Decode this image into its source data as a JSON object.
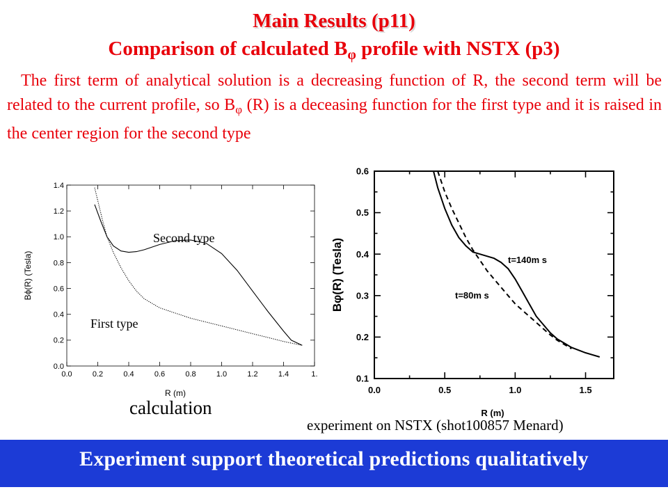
{
  "header": {
    "title": "Main Results (p11)",
    "subtitle_pre": "Comparison  of calculated B",
    "subtitle_sub": "φ",
    "subtitle_post": " profile with NSTX (p3)"
  },
  "paragraph": {
    "part1": "The first term of analytical solution is a decreasing function of R, the second term will be related to the current profile, so B",
    "sub": "φ",
    "part2": " (R) is a deceasing function for the first type and it is raised in the center region for the second type"
  },
  "captions": {
    "calculation": "calculation",
    "experiment": "experiment on NSTX (shot100857  Menard)"
  },
  "banner": {
    "text": "Experiment support theoretical predictions qualitatively",
    "color": "#1c3bd6"
  },
  "chart_data": [
    {
      "type": "line",
      "xlabel": "R (m)",
      "ylabel": "Bϕ(R) (Tesla)",
      "xlim": [
        0.0,
        1.6
      ],
      "ylim": [
        0.0,
        1.4
      ],
      "x_ticks": [
        "0.0",
        "0.2",
        "0.4",
        "0.6",
        "0.8",
        "1.0",
        "1.2",
        "1.4",
        "1."
      ],
      "y_ticks": [
        "0.0",
        "0.2",
        "0.4",
        "0.6",
        "0.8",
        "1.0",
        "1.2",
        "1.4"
      ],
      "annotations": [
        "Second type",
        "First type"
      ],
      "series": [
        {
          "name": "Second type",
          "style": "solid",
          "x": [
            0.18,
            0.22,
            0.26,
            0.3,
            0.35,
            0.4,
            0.45,
            0.5,
            0.55,
            0.6,
            0.7,
            0.8,
            0.9,
            1.0,
            1.1,
            1.2,
            1.3,
            1.4,
            1.45,
            1.52
          ],
          "y": [
            1.25,
            1.12,
            1.0,
            0.93,
            0.89,
            0.88,
            0.885,
            0.9,
            0.92,
            0.94,
            0.97,
            0.975,
            0.95,
            0.87,
            0.74,
            0.58,
            0.42,
            0.27,
            0.2,
            0.16
          ]
        },
        {
          "name": "First type",
          "style": "dotted",
          "x": [
            0.18,
            0.2,
            0.23,
            0.26,
            0.3,
            0.35,
            0.4,
            0.45,
            0.5,
            0.6,
            0.7,
            0.8,
            0.9,
            1.0,
            1.1,
            1.2,
            1.3,
            1.4,
            1.52
          ],
          "y": [
            1.38,
            1.28,
            1.13,
            1.0,
            0.88,
            0.76,
            0.66,
            0.58,
            0.52,
            0.45,
            0.41,
            0.37,
            0.34,
            0.31,
            0.28,
            0.25,
            0.22,
            0.19,
            0.16
          ]
        }
      ]
    },
    {
      "type": "line",
      "xlabel": "R (m)",
      "ylabel": "Bφ(R) (Tesla)",
      "xlim": [
        0.0,
        1.7
      ],
      "ylim": [
        0.1,
        0.6
      ],
      "x_ticks": [
        "0.0",
        "0.5",
        "1.0",
        "1.5"
      ],
      "y_ticks": [
        "0.1",
        "0.2",
        "0.3",
        "0.4",
        "0.5",
        "0.6"
      ],
      "annotations": [
        "t=140m s",
        "t=80m s"
      ],
      "series": [
        {
          "name": "t=140m s",
          "style": "solid",
          "x": [
            0.42,
            0.45,
            0.5,
            0.55,
            0.6,
            0.65,
            0.7,
            0.75,
            0.8,
            0.85,
            0.9,
            0.95,
            1.0,
            1.05,
            1.1,
            1.15,
            1.2,
            1.25,
            1.3,
            1.35,
            1.4,
            1.5,
            1.6
          ],
          "y": [
            0.6,
            0.56,
            0.51,
            0.47,
            0.44,
            0.42,
            0.405,
            0.4,
            0.395,
            0.39,
            0.38,
            0.365,
            0.34,
            0.31,
            0.28,
            0.25,
            0.23,
            0.21,
            0.195,
            0.185,
            0.175,
            0.162,
            0.152
          ]
        },
        {
          "name": "t=80m s",
          "style": "dashed",
          "x": [
            0.45,
            0.5,
            0.55,
            0.6,
            0.65,
            0.7,
            0.75,
            0.8,
            0.85,
            0.9,
            0.95,
            1.0,
            1.05,
            1.1,
            1.15,
            1.2,
            1.25,
            1.3,
            1.35,
            1.4
          ],
          "y": [
            0.6,
            0.55,
            0.51,
            0.475,
            0.44,
            0.41,
            0.385,
            0.36,
            0.34,
            0.32,
            0.3,
            0.28,
            0.265,
            0.25,
            0.235,
            0.22,
            0.205,
            0.192,
            0.182,
            0.172
          ]
        }
      ]
    }
  ]
}
